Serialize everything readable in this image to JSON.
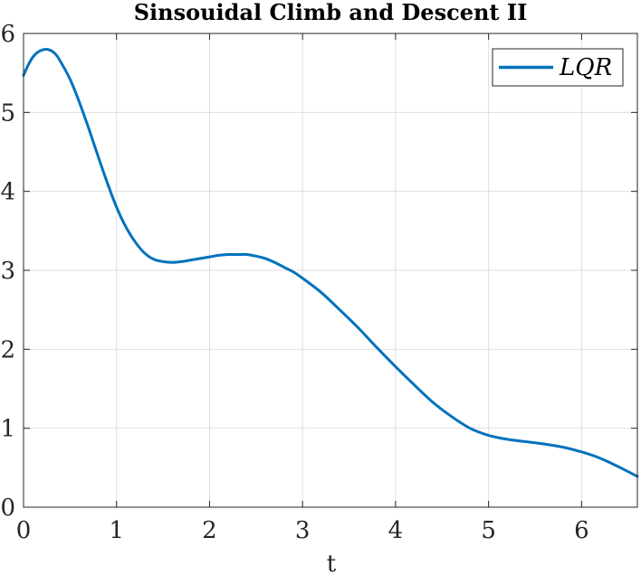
{
  "chart_data": {
    "type": "line",
    "title": "Sinsouidal Climb and Descent II",
    "xlabel": "t",
    "ylabel": "",
    "xlim": [
      0,
      6.6
    ],
    "ylim": [
      0,
      6
    ],
    "xticks": [
      0,
      1,
      2,
      3,
      4,
      5,
      6
    ],
    "yticks": [
      0,
      1,
      2,
      3,
      4,
      5,
      6
    ],
    "xtick_labels": [
      "0",
      "1",
      "2",
      "3",
      "4",
      "5",
      "6"
    ],
    "ytick_labels": [
      "0",
      "1",
      "2",
      "3",
      "4",
      "5",
      "6"
    ],
    "grid": true,
    "legend_position": "top-right",
    "series": [
      {
        "name": "LQR",
        "color": "#0072BD",
        "x": [
          0,
          0.05,
          0.1,
          0.15,
          0.2,
          0.25,
          0.3,
          0.35,
          0.4,
          0.5,
          0.6,
          0.7,
          0.8,
          0.9,
          1.0,
          1.1,
          1.2,
          1.3,
          1.4,
          1.5,
          1.6,
          1.7,
          1.8,
          1.9,
          2.0,
          2.1,
          2.2,
          2.3,
          2.4,
          2.5,
          2.6,
          2.7,
          2.8,
          2.9,
          3.0,
          3.2,
          3.4,
          3.6,
          3.8,
          4.0,
          4.2,
          4.4,
          4.6,
          4.8,
          5.0,
          5.2,
          5.4,
          5.6,
          5.8,
          6.0,
          6.2,
          6.4,
          6.6
        ],
        "y": [
          5.47,
          5.6,
          5.7,
          5.76,
          5.79,
          5.8,
          5.78,
          5.73,
          5.64,
          5.42,
          5.13,
          4.8,
          4.45,
          4.11,
          3.8,
          3.55,
          3.36,
          3.22,
          3.14,
          3.11,
          3.1,
          3.11,
          3.13,
          3.15,
          3.17,
          3.19,
          3.2,
          3.2,
          3.2,
          3.18,
          3.15,
          3.1,
          3.04,
          2.98,
          2.9,
          2.72,
          2.5,
          2.27,
          2.02,
          1.78,
          1.55,
          1.33,
          1.15,
          1.0,
          0.91,
          0.86,
          0.83,
          0.8,
          0.76,
          0.7,
          0.62,
          0.51,
          0.39
        ]
      }
    ]
  }
}
